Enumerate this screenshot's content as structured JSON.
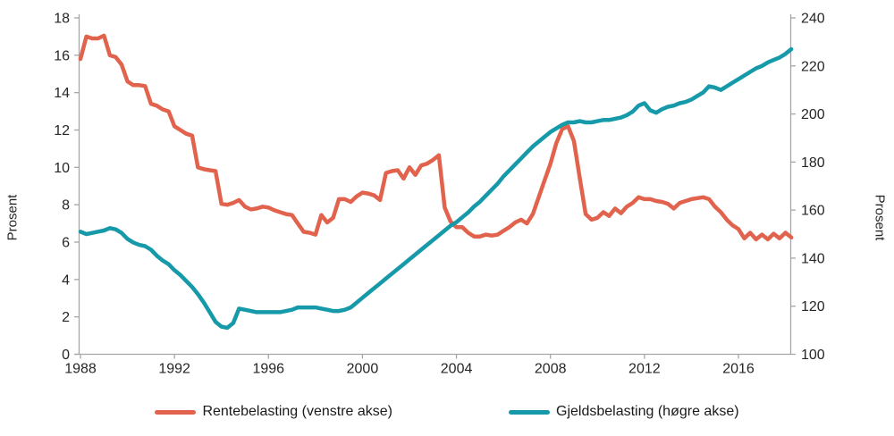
{
  "axis_titles": {
    "left": "Prosent",
    "right": "Prosent"
  },
  "colors": {
    "axis_line": "#a6a6a6",
    "tick_text": "#262626",
    "rentebelasting": "#e2634d",
    "gjeldsbelasting": "#1699a8"
  },
  "chart_data": {
    "type": "line",
    "title": "",
    "xlabel": "",
    "ylabel_left": "Prosent",
    "ylabel_right": "Prosent",
    "grid": false,
    "legend_position": "bottom",
    "x_start_year": 1988,
    "x_step_years": 0.25,
    "x_end_year": 2018.25,
    "x_tick_years": [
      1988,
      1992,
      1996,
      2000,
      2004,
      2008,
      2012,
      2016
    ],
    "left_axis": {
      "min": 0,
      "max": 18,
      "ticks": [
        0,
        2,
        4,
        6,
        8,
        10,
        12,
        14,
        16,
        18
      ]
    },
    "right_axis": {
      "min": 100,
      "max": 240,
      "ticks": [
        100,
        120,
        140,
        160,
        180,
        200,
        220,
        240
      ]
    },
    "series": [
      {
        "name": "Rentebelasting (venstre akse)",
        "axis": "left",
        "color": "#e2634d",
        "values": [
          15.8,
          17.0,
          16.9,
          16.9,
          17.05,
          16.0,
          15.9,
          15.5,
          14.6,
          14.4,
          14.4,
          14.35,
          13.4,
          13.3,
          13.1,
          13.0,
          12.2,
          12.0,
          11.8,
          11.7,
          10.0,
          9.9,
          9.85,
          9.8,
          8.05,
          8.0,
          8.1,
          8.25,
          7.9,
          7.75,
          7.8,
          7.9,
          7.85,
          7.7,
          7.6,
          7.5,
          7.45,
          7.0,
          6.55,
          6.5,
          6.4,
          7.45,
          7.05,
          7.3,
          8.3,
          8.3,
          8.15,
          8.45,
          8.65,
          8.6,
          8.5,
          8.25,
          9.7,
          9.8,
          9.85,
          9.4,
          10.0,
          9.6,
          10.1,
          10.2,
          10.4,
          10.65,
          7.85,
          7.1,
          6.8,
          6.8,
          6.5,
          6.3,
          6.3,
          6.4,
          6.35,
          6.4,
          6.6,
          6.8,
          7.05,
          7.2,
          7.0,
          7.5,
          8.4,
          9.3,
          10.2,
          11.3,
          12.05,
          12.2,
          11.4,
          9.4,
          7.5,
          7.2,
          7.3,
          7.6,
          7.4,
          7.8,
          7.55,
          7.9,
          8.1,
          8.4,
          8.3,
          8.3,
          8.2,
          8.15,
          8.05,
          7.8,
          8.1,
          8.2,
          8.3,
          8.35,
          8.4,
          8.3,
          7.9,
          7.6,
          7.2,
          6.9,
          6.7,
          6.2,
          6.5,
          6.15,
          6.4,
          6.15,
          6.45,
          6.2,
          6.5,
          6.25
        ]
      },
      {
        "name": "Gjeldsbelasting (høgre akse)",
        "axis": "right",
        "color": "#1699a8",
        "values": [
          151,
          150,
          150.5,
          151,
          151.5,
          152.5,
          152,
          150.5,
          148,
          146.5,
          145.5,
          145,
          143.5,
          141,
          139,
          137.5,
          135,
          133,
          130.5,
          128,
          125,
          121.5,
          117.5,
          113.5,
          111.5,
          111,
          113,
          119,
          118.5,
          118,
          117.5,
          117.5,
          117.5,
          117.5,
          117.5,
          118,
          118.5,
          119.5,
          119.5,
          119.5,
          119.5,
          119,
          118.5,
          118,
          118,
          118.5,
          119.5,
          121.5,
          123.5,
          125.5,
          127.5,
          129.5,
          131.5,
          133.5,
          135.5,
          137.5,
          139.5,
          141.5,
          143.5,
          145.5,
          147.5,
          149.5,
          151.5,
          153.5,
          155,
          157,
          159,
          161.5,
          163.5,
          166,
          168.5,
          171,
          174,
          176.5,
          179,
          181.5,
          184,
          186.5,
          188.5,
          190.5,
          192.5,
          194,
          195.5,
          196.5,
          196.5,
          197,
          196.5,
          196.5,
          197,
          197.5,
          197.5,
          198,
          198.5,
          199.5,
          201,
          203.5,
          204.5,
          201.5,
          200.5,
          202,
          203,
          203.5,
          204.5,
          205,
          206,
          207.5,
          209,
          211.5,
          211,
          210,
          211.5,
          213,
          214.5,
          216,
          217.5,
          219,
          220,
          221.5,
          222.5,
          223.5,
          225,
          227
        ]
      }
    ]
  }
}
